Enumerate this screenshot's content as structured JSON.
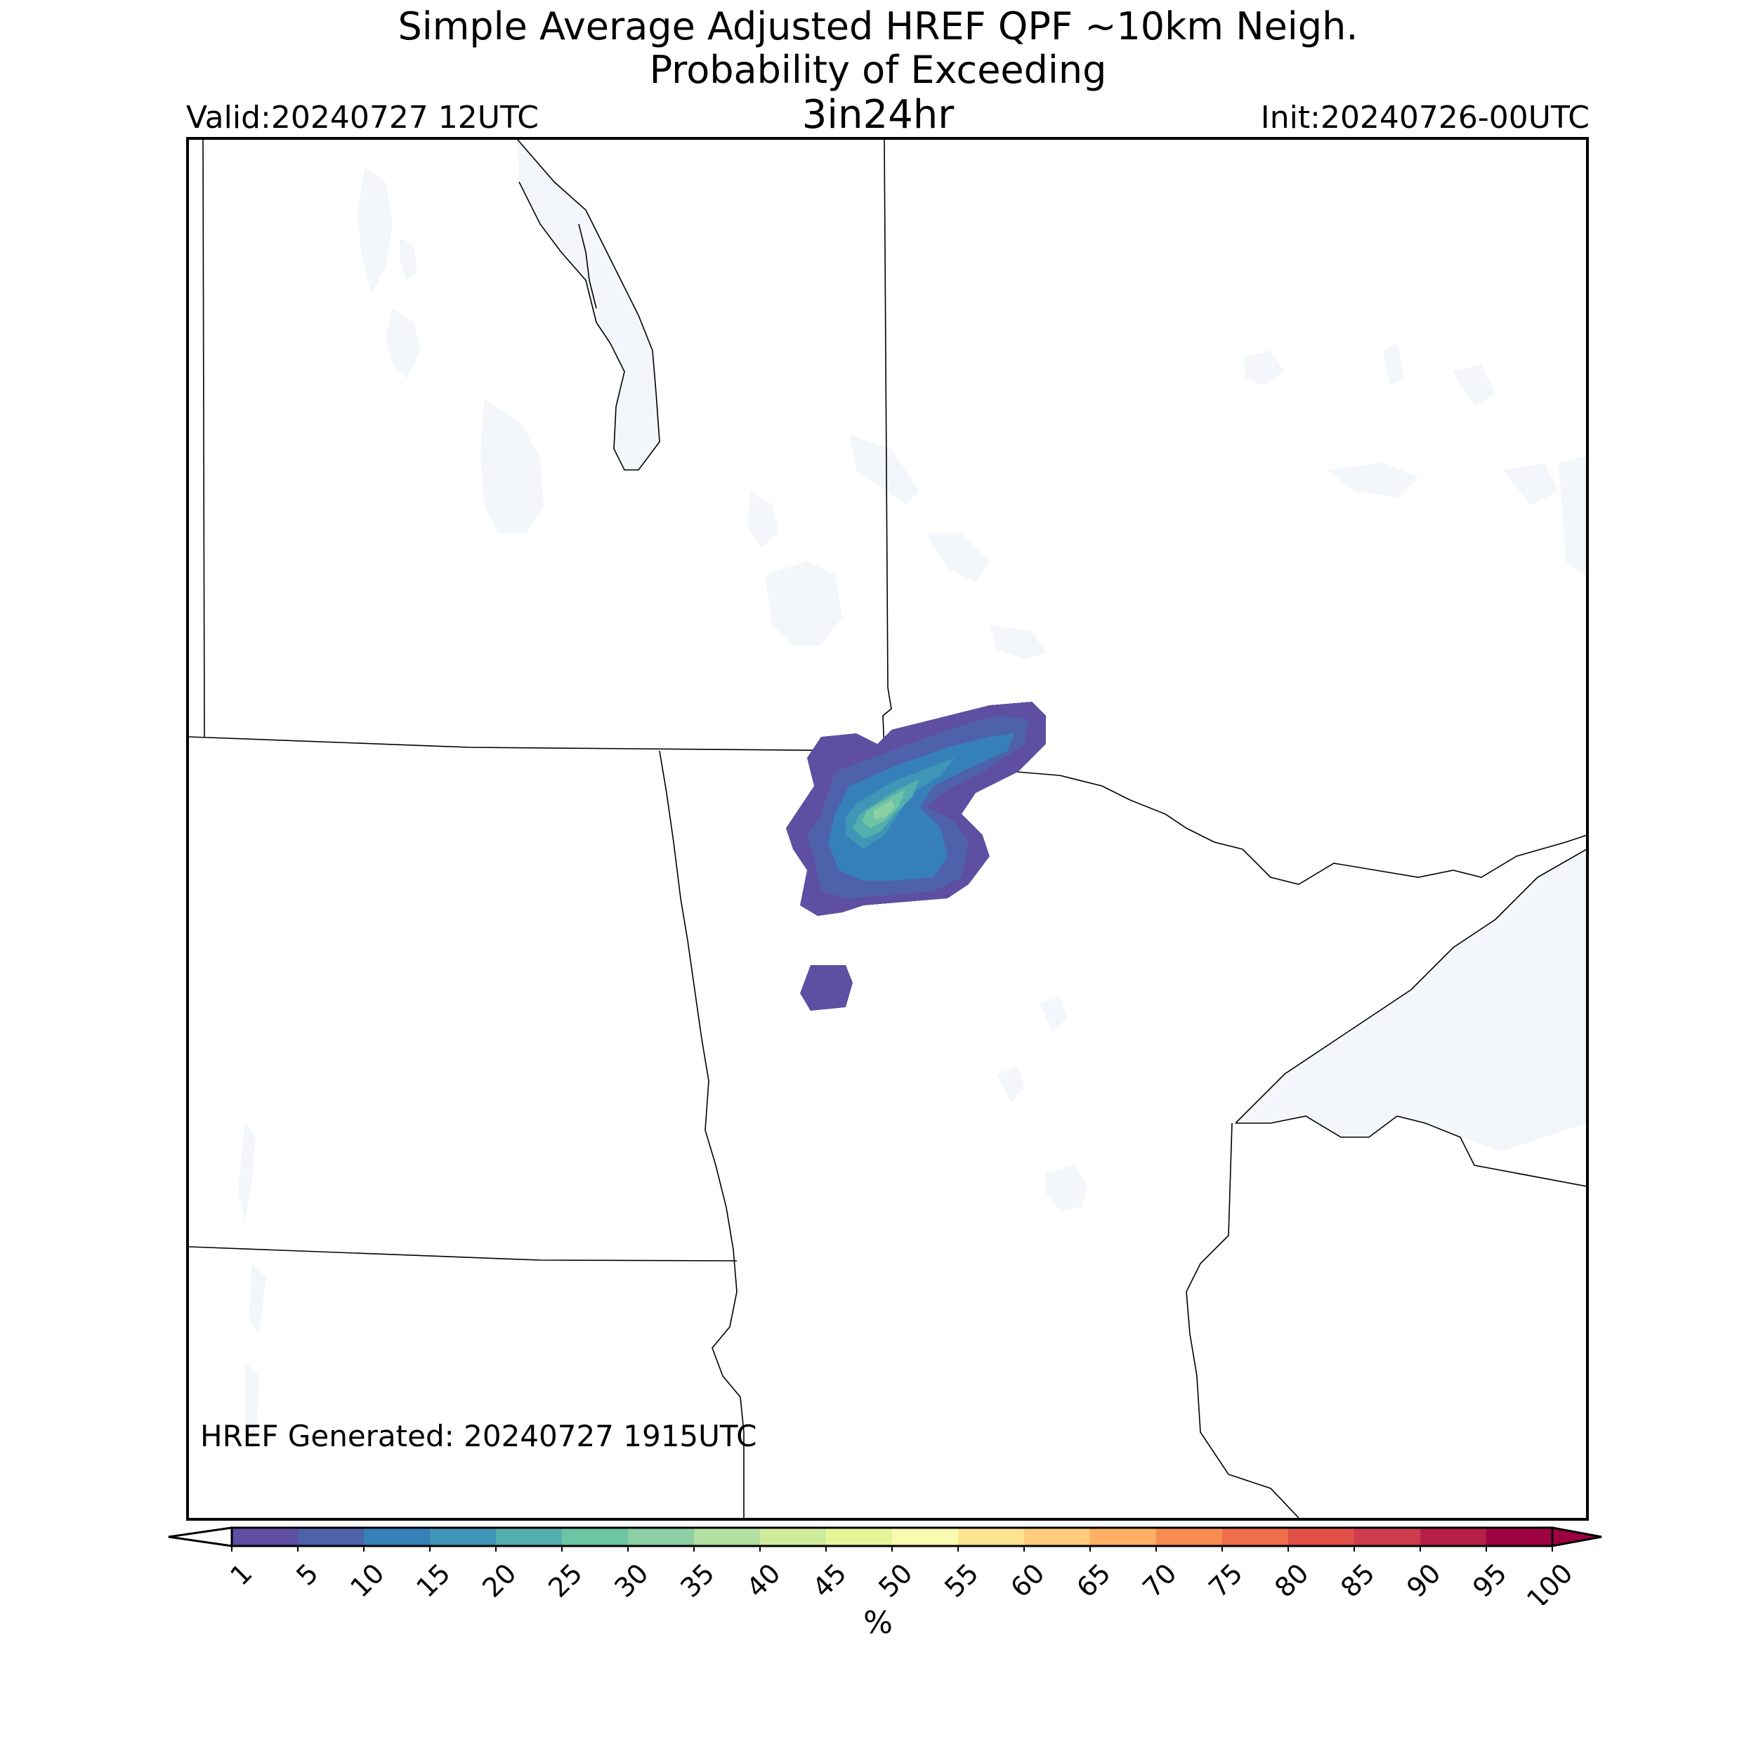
{
  "header": {
    "title_line1": "Simple Average Adjusted HREF QPF ~10km Neigh.",
    "title_line2": "Probability of Exceeding",
    "title_line3": "3in24hr",
    "valid": "Valid:20240727 12UTC",
    "init": "Init:20240726-00UTC"
  },
  "map": {
    "generated_note": "HREF Generated: 20240727 1915UTC",
    "water_color": "#f3f6fa",
    "boundary_color": "#000000"
  },
  "colorbar": {
    "unit": "%",
    "ticks": [
      "1",
      "5",
      "10",
      "15",
      "20",
      "25",
      "30",
      "35",
      "40",
      "45",
      "50",
      "55",
      "60",
      "65",
      "70",
      "75",
      "80",
      "85",
      "90",
      "95",
      "100"
    ],
    "colors": [
      "#5e4fa2",
      "#4e62ab",
      "#3680b9",
      "#3f96b7",
      "#54aead",
      "#6dc4a4",
      "#8ccfa4",
      "#b3e0a2",
      "#cfec9d",
      "#e6f598",
      "#fbf8b0",
      "#fee391",
      "#fdcb7b",
      "#fdb063",
      "#f88d52",
      "#ef6e4a",
      "#e05047",
      "#cd3b4c",
      "#b51f48",
      "#9e0142"
    ],
    "under_color": "#ffffff",
    "over_color": "#9e0142"
  },
  "probability_field": {
    "blobs": [
      {
        "level": "1-5",
        "color": "#5e4fa2"
      },
      {
        "level": "5-10",
        "color": "#4e62ab"
      },
      {
        "level": "10-15",
        "color": "#3680b9"
      },
      {
        "level": "15-20",
        "color": "#3f96b7"
      },
      {
        "level": "20-25",
        "color": "#54aead"
      },
      {
        "level": "25-30",
        "color": "#6dc4a4"
      },
      {
        "level": "30-35",
        "color": "#8ccfa4"
      }
    ]
  }
}
